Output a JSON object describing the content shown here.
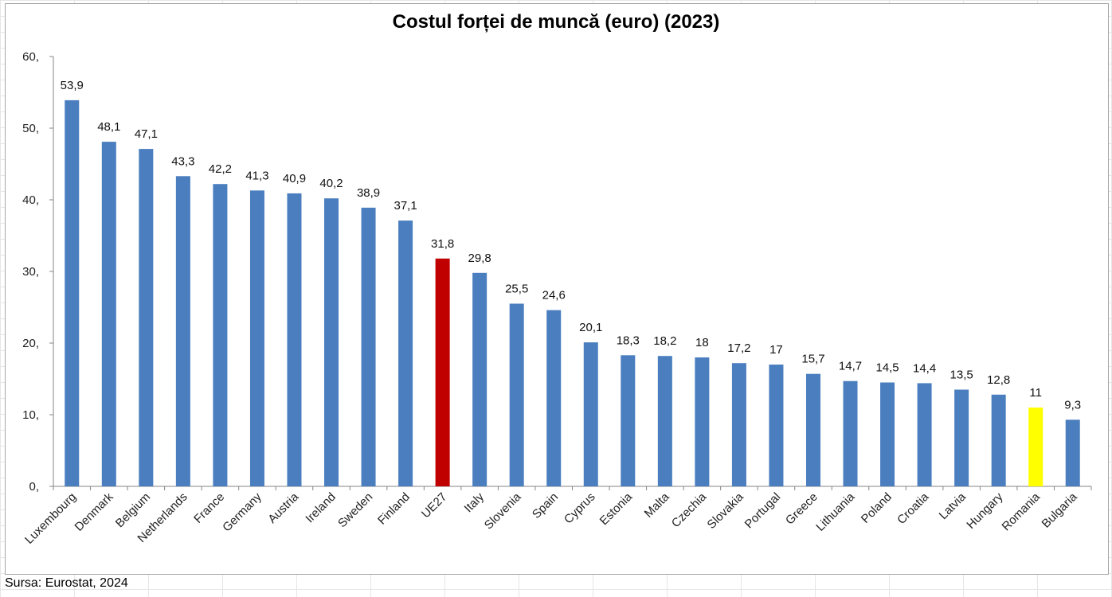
{
  "chart_data": {
    "type": "bar",
    "title": "Costul forței de muncă (euro) (2023)",
    "categories": [
      "Luxembourg",
      "Denmark",
      "Belgium",
      "Netherlands",
      "France",
      "Germany",
      "Austria",
      "Ireland",
      "Sweden",
      "Finland",
      "UE27",
      "Italy",
      "Slovenia",
      "Spain",
      "Cyprus",
      "Estonia",
      "Malta",
      "Czechia",
      "Slovakia",
      "Portugal",
      "Greece",
      "Lithuania",
      "Poland",
      "Croatia",
      "Latvia",
      "Hungary",
      "Romania",
      "Bulgaria"
    ],
    "values": [
      53.9,
      48.1,
      47.1,
      43.3,
      42.2,
      41.3,
      40.9,
      40.2,
      38.9,
      37.1,
      31.8,
      29.8,
      25.5,
      24.6,
      20.1,
      18.3,
      18.2,
      18,
      17.2,
      17,
      15.7,
      14.7,
      14.5,
      14.4,
      13.5,
      12.8,
      11,
      9.3
    ],
    "value_labels": [
      "53,9",
      "48,1",
      "47,1",
      "43,3",
      "42,2",
      "41,3",
      "40,9",
      "40,2",
      "38,9",
      "37,1",
      "31,8",
      "29,8",
      "25,5",
      "24,6",
      "20,1",
      "18,3",
      "18,2",
      "18",
      "17,2",
      "17",
      "15,7",
      "14,7",
      "14,5",
      "14,4",
      "13,5",
      "12,8",
      "11",
      "9,3"
    ],
    "ylim": [
      0,
      60
    ],
    "yticks": [
      0,
      10,
      20,
      30,
      40,
      50,
      60
    ],
    "ytick_labels": [
      "0,",
      "10,",
      "20,",
      "30,",
      "40,",
      "50,",
      "60,"
    ],
    "grid": false,
    "legend": "none",
    "colors": {
      "default": "#4a7ebf",
      "highlights": {
        "UE27": "#c00000",
        "Romania": "#ffff00"
      }
    }
  },
  "source_note": "Sursa: Eurostat, 2024"
}
